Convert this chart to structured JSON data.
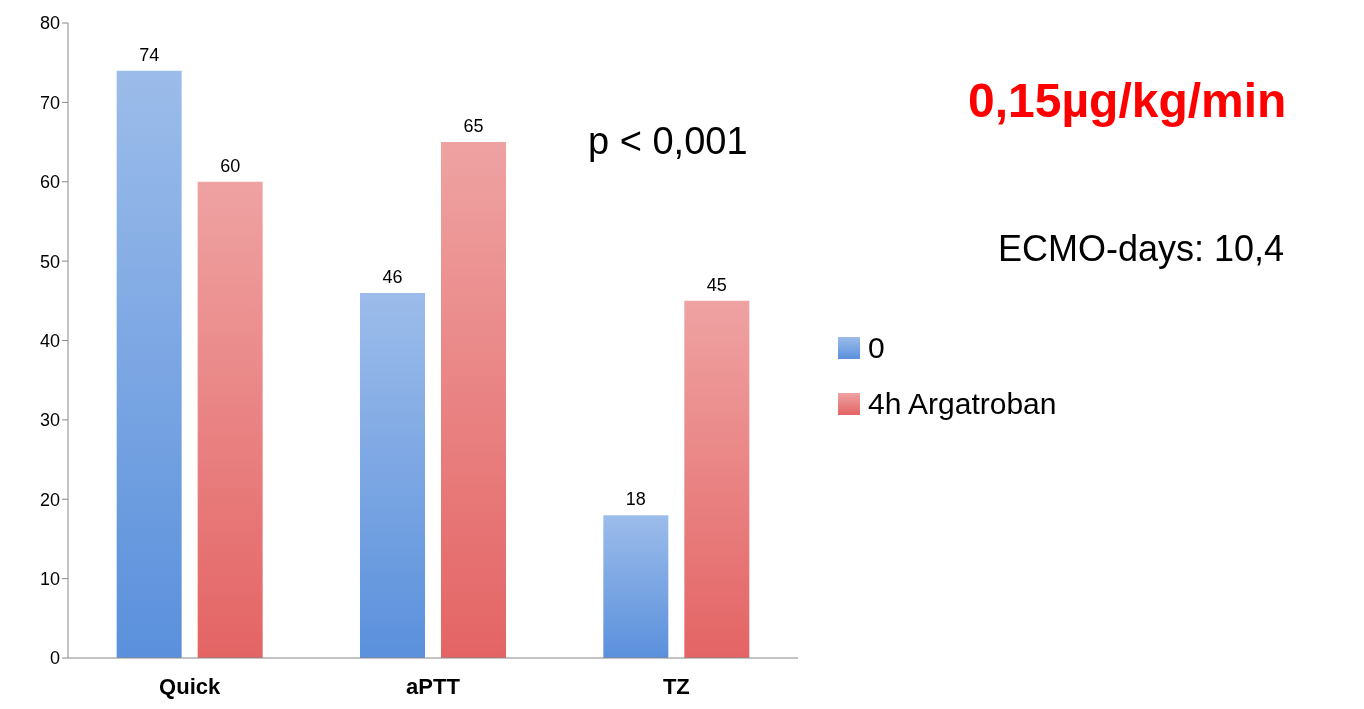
{
  "chart_data": {
    "type": "bar",
    "categories": [
      "Quick",
      "aPTT",
      "TZ"
    ],
    "series": [
      {
        "name": "0",
        "color": "#5a90dc",
        "values": [
          74,
          46,
          18
        ]
      },
      {
        "name": "4h Argatroban",
        "color": "#e46464",
        "values": [
          60,
          65,
          45
        ]
      }
    ],
    "ylim": [
      0,
      80
    ],
    "yticks": [
      0,
      10,
      20,
      30,
      40,
      50,
      60,
      70,
      80
    ],
    "legend": "right",
    "data_labels": true,
    "annotations": [
      "p < 0,001",
      "0,15µg/kg/min",
      "ECMO-days: 10,4"
    ]
  }
}
